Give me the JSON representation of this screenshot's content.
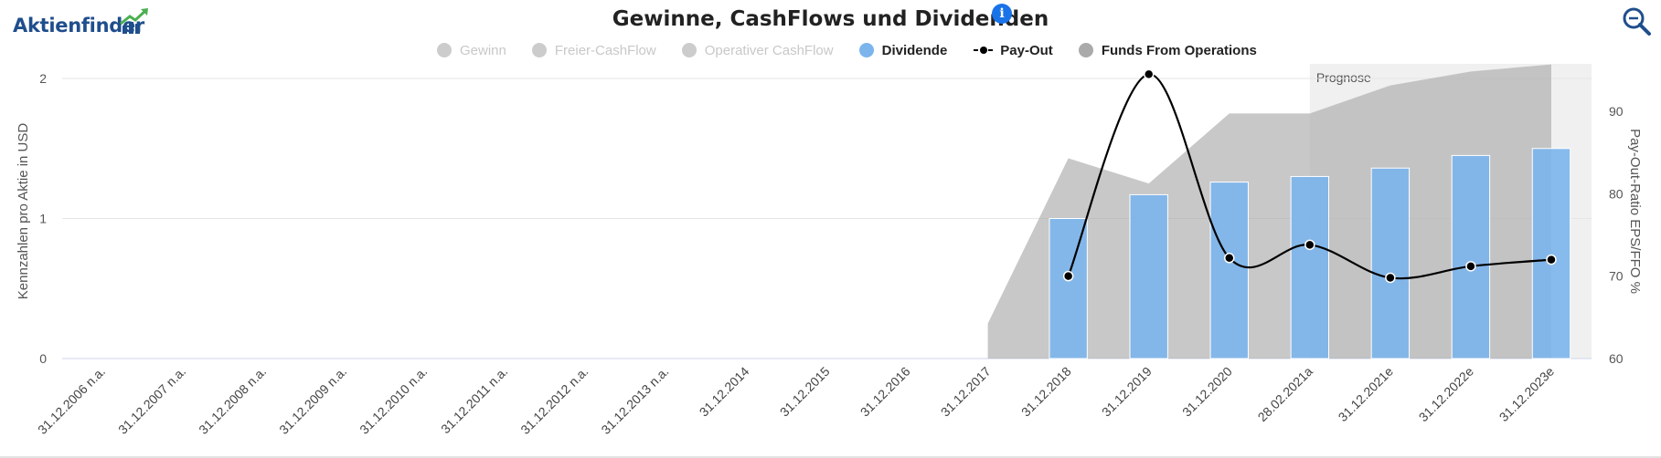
{
  "header": {
    "logo_text": "Aktienfinder",
    "title": "Gewinne, CashFlows und Dividenden",
    "info_icon": "info-icon",
    "zoom_icon": "zoom-icon"
  },
  "legend": [
    {
      "label": "Gewinn",
      "color": "#cccccc",
      "active": false,
      "marker": "dot"
    },
    {
      "label": "Freier-CashFlow",
      "color": "#cccccc",
      "active": false,
      "marker": "dot"
    },
    {
      "label": "Operativer CashFlow",
      "color": "#cccccc",
      "active": false,
      "marker": "dot"
    },
    {
      "label": "Dividende",
      "color": "#7cb5ec",
      "active": true,
      "marker": "dot"
    },
    {
      "label": "Pay-Out",
      "color": "#000000",
      "active": true,
      "marker": "line"
    },
    {
      "label": "Funds From Operations",
      "color": "#aaaaaa",
      "active": true,
      "marker": "dot"
    }
  ],
  "chart_data": {
    "type": "bar",
    "categories": [
      "31.12.2006 n.a.",
      "31.12.2007 n.a.",
      "31.12.2008 n.a.",
      "31.12.2009 n.a.",
      "31.12.2010 n.a.",
      "31.12.2011 n.a.",
      "31.12.2012 n.a.",
      "31.12.2013 n.a.",
      "31.12.2014",
      "31.12.2015",
      "31.12.2016",
      "31.12.2017",
      "31.12.2018",
      "31.12.2019",
      "31.12.2020",
      "28.02.2021a",
      "31.12.2021e",
      "31.12.2022e",
      "31.12.2023e"
    ],
    "ylabel": "Kennzahlen pro Aktie in USD",
    "y2label": "Pay-Out-Ratio EPS/FFO %",
    "ylim": [
      0,
      2
    ],
    "yticks": [
      0,
      1,
      2
    ],
    "y2lim": [
      60,
      95
    ],
    "y2ticks": [
      60,
      70,
      80,
      90
    ],
    "grid": true,
    "prognose_label": "Prognose",
    "prognose_start_category": "28.02.2021a",
    "series": [
      {
        "name": "Funds From Operations",
        "type": "area",
        "color": "#aaaaaa",
        "values": [
          null,
          null,
          null,
          null,
          null,
          null,
          null,
          null,
          null,
          null,
          null,
          0.25,
          1.43,
          1.25,
          1.75,
          1.75,
          1.95,
          2.05,
          2.1
        ]
      },
      {
        "name": "Dividende",
        "type": "bar",
        "color": "#7cb5ec",
        "values": [
          null,
          null,
          null,
          null,
          null,
          null,
          null,
          null,
          null,
          null,
          null,
          null,
          1.0,
          1.17,
          1.26,
          1.3,
          1.36,
          1.45,
          1.5
        ]
      },
      {
        "name": "Pay-Out",
        "type": "line",
        "axis": "right",
        "color": "#000000",
        "values": [
          null,
          null,
          null,
          null,
          null,
          null,
          null,
          null,
          null,
          null,
          null,
          null,
          70,
          94.5,
          72.2,
          73.8,
          69.8,
          71.2,
          72
        ]
      }
    ]
  }
}
